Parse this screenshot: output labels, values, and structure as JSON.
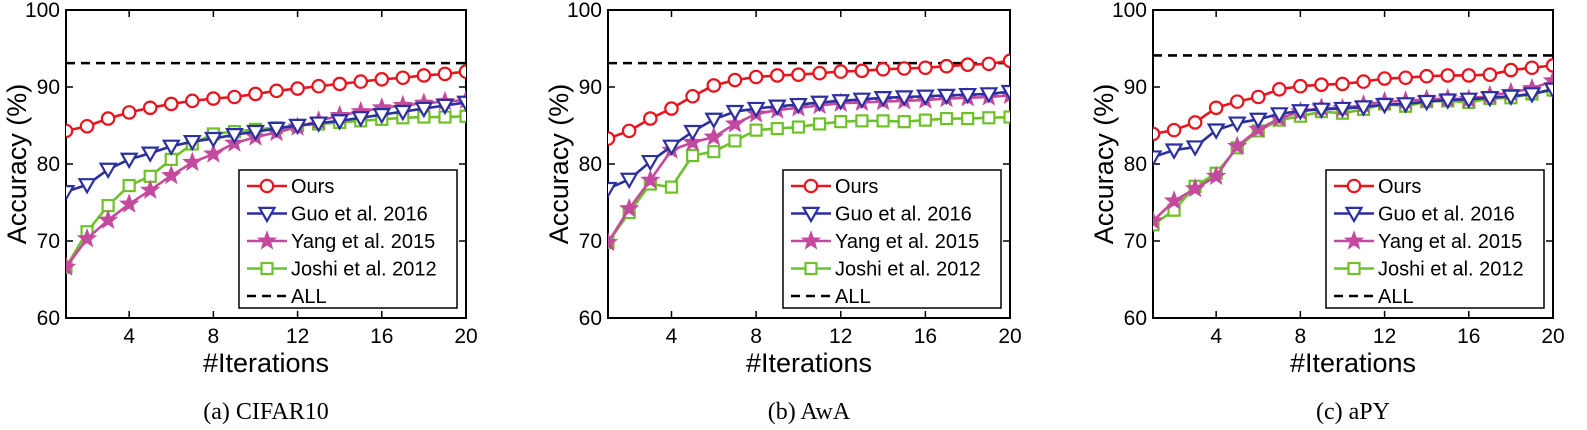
{
  "chart_data": [
    {
      "type": "line",
      "caption": "(a) CIFAR10",
      "xlabel": "#Iterations",
      "ylabel": "Accuracy (%)",
      "xlim": [
        1,
        20
      ],
      "ylim": [
        60,
        100
      ],
      "xticks": [
        4,
        8,
        12,
        16,
        20
      ],
      "yticks": [
        60,
        70,
        80,
        90,
        100
      ],
      "x": [
        1,
        2,
        3,
        4,
        5,
        6,
        7,
        8,
        9,
        10,
        11,
        12,
        13,
        14,
        15,
        16,
        17,
        18,
        19,
        20
      ],
      "series": [
        {
          "name": "Ours",
          "values": [
            84.3,
            84.9,
            85.9,
            86.7,
            87.3,
            87.8,
            88.2,
            88.5,
            88.7,
            89.1,
            89.5,
            89.8,
            90.1,
            90.4,
            90.7,
            91.0,
            91.2,
            91.5,
            91.7,
            92.0
          ]
        },
        {
          "name": "Guo et al. 2016",
          "values": [
            76.4,
            77.3,
            79.3,
            80.6,
            81.4,
            82.3,
            82.9,
            83.3,
            83.8,
            84.2,
            84.6,
            85.0,
            85.3,
            85.6,
            86.0,
            86.4,
            86.8,
            87.2,
            87.6,
            88.0
          ]
        },
        {
          "name": "Yang et al. 2015",
          "values": [
            66.6,
            70.3,
            72.7,
            74.8,
            76.6,
            78.5,
            80.2,
            81.3,
            82.7,
            83.5,
            84.1,
            84.8,
            85.6,
            86.3,
            86.8,
            87.3,
            87.6,
            87.9,
            88.1,
            88.3
          ]
        },
        {
          "name": "Joshi et al. 2012",
          "values": [
            66.6,
            71.2,
            74.6,
            77.2,
            78.4,
            80.6,
            82.6,
            83.9,
            84.2,
            84.5,
            84.7,
            85.0,
            85.2,
            85.4,
            85.6,
            85.8,
            86.0,
            86.1,
            86.1,
            86.2
          ]
        },
        {
          "name": "ALL",
          "values": [
            93.1,
            93.1,
            93.1,
            93.1,
            93.1,
            93.1,
            93.1,
            93.1,
            93.1,
            93.1,
            93.1,
            93.1,
            93.1,
            93.1,
            93.1,
            93.1,
            93.1,
            93.1,
            93.1,
            93.1
          ]
        }
      ]
    },
    {
      "type": "line",
      "caption": "(b) AwA",
      "xlabel": "#Iterations",
      "ylabel": "Accuracy (%)",
      "xlim": [
        1,
        20
      ],
      "ylim": [
        60,
        100
      ],
      "xticks": [
        4,
        8,
        12,
        16,
        20
      ],
      "yticks": [
        60,
        70,
        80,
        90,
        100
      ],
      "x": [
        1,
        2,
        3,
        4,
        5,
        6,
        7,
        8,
        9,
        10,
        11,
        12,
        13,
        14,
        15,
        16,
        17,
        18,
        19,
        20
      ],
      "series": [
        {
          "name": "Ours",
          "values": [
            83.3,
            84.3,
            85.9,
            87.2,
            88.8,
            90.2,
            90.9,
            91.3,
            91.5,
            91.6,
            91.8,
            92.0,
            92.1,
            92.3,
            92.4,
            92.5,
            92.7,
            92.9,
            93.0,
            93.4
          ]
        },
        {
          "name": "Guo et al. 2016",
          "values": [
            76.8,
            78.0,
            80.3,
            82.3,
            84.2,
            85.8,
            86.8,
            87.2,
            87.5,
            87.7,
            88.0,
            88.2,
            88.4,
            88.6,
            88.7,
            88.8,
            88.9,
            89.0,
            89.1,
            89.4
          ]
        },
        {
          "name": "Yang et al. 2015",
          "values": [
            69.8,
            74.2,
            77.9,
            81.8,
            82.8,
            83.5,
            85.2,
            86.5,
            87.0,
            87.3,
            87.6,
            87.9,
            88.0,
            88.1,
            88.2,
            88.3,
            88.5,
            88.6,
            88.7,
            88.9
          ]
        },
        {
          "name": "Joshi et al. 2012",
          "values": [
            69.8,
            73.7,
            77.4,
            77.0,
            81.1,
            81.6,
            83.0,
            84.4,
            84.6,
            84.8,
            85.2,
            85.5,
            85.6,
            85.6,
            85.5,
            85.7,
            85.9,
            85.9,
            86.0,
            86.1
          ]
        },
        {
          "name": "ALL",
          "values": [
            93.1,
            93.1,
            93.1,
            93.1,
            93.1,
            93.1,
            93.1,
            93.1,
            93.1,
            93.1,
            93.1,
            93.1,
            93.1,
            93.1,
            93.1,
            93.1,
            93.1,
            93.1,
            93.1,
            93.1
          ]
        }
      ]
    },
    {
      "type": "line",
      "caption": "(c) aPY",
      "xlabel": "#Iterations",
      "ylabel": "Accuracy (%)",
      "xlim": [
        1,
        20
      ],
      "ylim": [
        60,
        100
      ],
      "xticks": [
        4,
        8,
        12,
        16,
        20
      ],
      "yticks": [
        60,
        70,
        80,
        90,
        100
      ],
      "x": [
        1,
        2,
        3,
        4,
        5,
        6,
        7,
        8,
        9,
        10,
        11,
        12,
        13,
        14,
        15,
        16,
        17,
        18,
        19,
        20
      ],
      "series": [
        {
          "name": "Ours",
          "values": [
            83.9,
            84.4,
            85.4,
            87.3,
            88.1,
            88.7,
            89.7,
            90.1,
            90.3,
            90.4,
            90.7,
            91.1,
            91.2,
            91.4,
            91.5,
            91.5,
            91.6,
            92.2,
            92.5,
            92.8
          ]
        },
        {
          "name": "Guo et al. 2016",
          "values": [
            80.9,
            81.8,
            82.2,
            84.4,
            85.3,
            85.8,
            86.5,
            86.9,
            87.1,
            87.2,
            87.4,
            87.7,
            87.8,
            88.1,
            88.3,
            88.4,
            88.6,
            88.8,
            89.1,
            89.7
          ]
        },
        {
          "name": "Yang et al. 2015",
          "values": [
            72.6,
            75.2,
            76.8,
            78.4,
            82.3,
            84.5,
            85.9,
            86.8,
            87.3,
            87.2,
            87.7,
            88.1,
            88.2,
            88.4,
            88.5,
            88.4,
            88.9,
            89.3,
            89.8,
            90.8
          ]
        },
        {
          "name": "Joshi et al. 2012",
          "values": [
            72.1,
            74.0,
            77.1,
            78.8,
            82.1,
            84.3,
            85.7,
            86.2,
            86.8,
            86.6,
            87.1,
            87.8,
            87.5,
            88.1,
            88.2,
            88.0,
            88.5,
            88.6,
            89.1,
            89.6
          ]
        },
        {
          "name": "ALL",
          "values": [
            94.1,
            94.1,
            94.1,
            94.1,
            94.1,
            94.1,
            94.1,
            94.1,
            94.1,
            94.1,
            94.1,
            94.1,
            94.1,
            94.1,
            94.1,
            94.1,
            94.1,
            94.1,
            94.1,
            94.1
          ]
        }
      ]
    }
  ],
  "legend": [
    {
      "name": "Ours",
      "color": "#e8141e",
      "marker": "circle",
      "dash": false
    },
    {
      "name": "Guo et al. 2016",
      "color": "#2b2fa0",
      "marker": "triangle-down",
      "dash": false
    },
    {
      "name": "Yang et al. 2015",
      "color": "#c44a9e",
      "marker": "star",
      "dash": false
    },
    {
      "name": "Joshi et al. 2012",
      "color": "#6ec12a",
      "marker": "square",
      "dash": false
    },
    {
      "name": "ALL",
      "color": "#000000",
      "marker": "none",
      "dash": true
    }
  ]
}
